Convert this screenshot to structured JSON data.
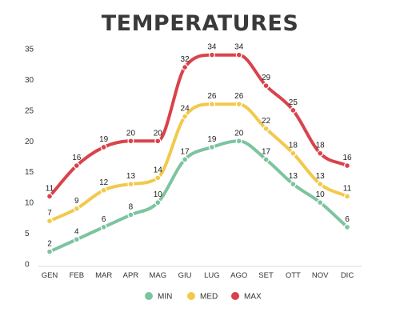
{
  "chart_data": {
    "type": "line",
    "title": "TEMPERATURES",
    "categories": [
      "GEN",
      "FEB",
      "MAR",
      "APR",
      "MAG",
      "GIU",
      "LUG",
      "AGO",
      "SET",
      "OTT",
      "NOV",
      "DIC"
    ],
    "series": [
      {
        "name": "MIN",
        "color": "#7cc4a0",
        "values": [
          2,
          4,
          6,
          8,
          10,
          17,
          19,
          20,
          17,
          13,
          10,
          6
        ]
      },
      {
        "name": "MED",
        "color": "#f2c94c",
        "values": [
          7,
          9,
          12,
          13,
          14,
          24,
          26,
          26,
          22,
          18,
          13,
          11
        ]
      },
      {
        "name": "MAX",
        "color": "#d9434b",
        "values": [
          11,
          16,
          19,
          20,
          20,
          32,
          34,
          34,
          29,
          25,
          18,
          16
        ]
      }
    ],
    "ylim": [
      0,
      35
    ],
    "yticks": [
      0,
      5,
      10,
      15,
      20,
      25,
      30,
      35
    ],
    "grid": false,
    "legend_position": "bottom"
  }
}
